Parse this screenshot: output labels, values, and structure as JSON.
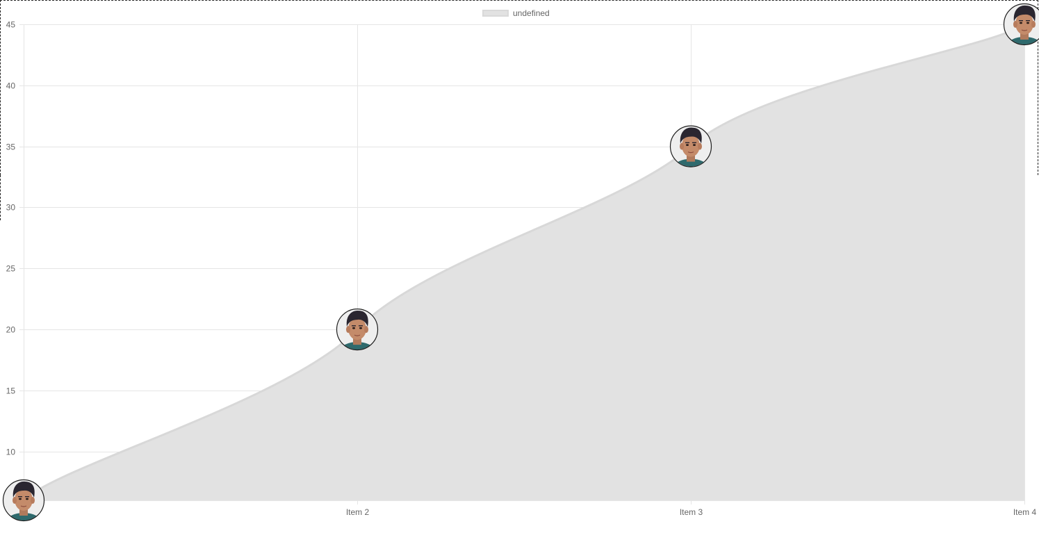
{
  "chart_data": {
    "type": "area",
    "categories": [
      "",
      "Item 2",
      "Item 3",
      "Item 4"
    ],
    "series": [
      {
        "values": [
          6,
          20,
          35,
          45
        ],
        "fill_color": "#e2e2e2",
        "line_color": "#d8d8d8",
        "point_style": "avatar-image"
      }
    ],
    "legend": {
      "label": "undefined",
      "position": "top-center"
    },
    "y_ticks": [
      10,
      15,
      20,
      25,
      30,
      35,
      40,
      45
    ],
    "ylim": [
      6,
      45
    ],
    "grid": true,
    "title": "",
    "xlabel": "",
    "ylabel": ""
  },
  "colors": {
    "grid": "#e5e5e5",
    "tick_text": "#666666",
    "area_fill": "#e2e2e2",
    "area_line": "#d8d8d8"
  }
}
